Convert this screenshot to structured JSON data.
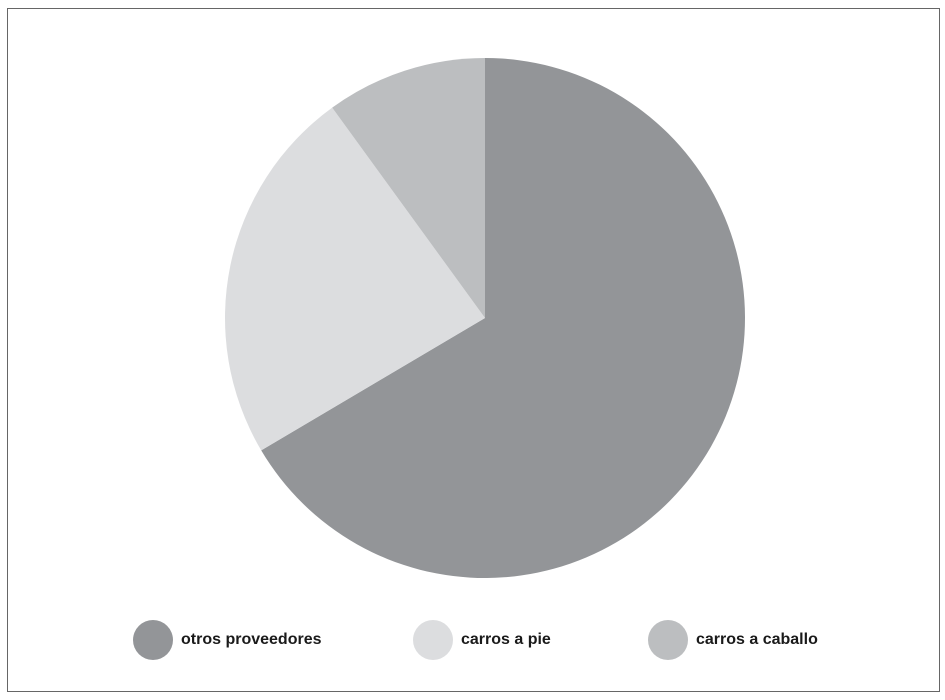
{
  "chart_data": {
    "type": "pie",
    "title": "",
    "slices": [
      {
        "label": "otros proveedores",
        "value": 66.5,
        "color": "#939598"
      },
      {
        "label": "carros a pie",
        "value": 23.5,
        "color": "#dcdddf"
      },
      {
        "label": "carros a caballo",
        "value": 10.0,
        "color": "#bcbec0"
      }
    ],
    "start_angle_deg": 0,
    "direction": "clockwise",
    "legend_position": "bottom"
  }
}
